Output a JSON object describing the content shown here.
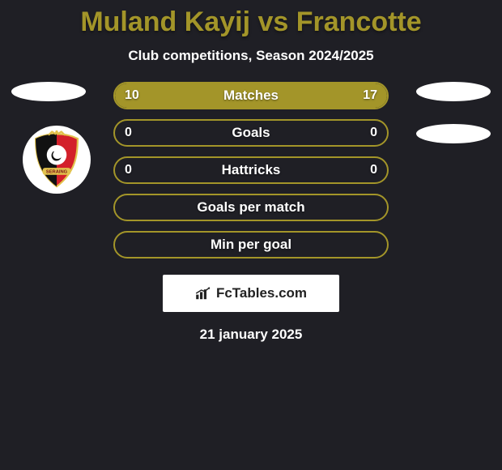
{
  "title": {
    "text": "Muland Kayij vs Francotte",
    "color": "#a39529",
    "fontsize": 34
  },
  "subtitle": {
    "text": "Club competitions, Season 2024/2025",
    "color": "#ffffff",
    "fontsize": 17
  },
  "colors": {
    "background": "#1f1f25",
    "bar_fill": "#a39529",
    "bar_border": "#a39529",
    "text": "#ffffff"
  },
  "bars": [
    {
      "label": "Matches",
      "left_value": "10",
      "right_value": "17",
      "left_fill_pct": 37,
      "right_fill_pct": 63,
      "show_values": true
    },
    {
      "label": "Goals",
      "left_value": "0",
      "right_value": "0",
      "left_fill_pct": 0,
      "right_fill_pct": 0,
      "show_values": true
    },
    {
      "label": "Hattricks",
      "left_value": "0",
      "right_value": "0",
      "left_fill_pct": 0,
      "right_fill_pct": 0,
      "show_values": true
    },
    {
      "label": "Goals per match",
      "left_value": "",
      "right_value": "",
      "left_fill_pct": 0,
      "right_fill_pct": 0,
      "show_values": false
    },
    {
      "label": "Min per goal",
      "left_value": "",
      "right_value": "",
      "left_fill_pct": 0,
      "right_fill_pct": 0,
      "show_values": false
    }
  ],
  "watermark": {
    "text": "FcTables.com"
  },
  "footer_date": "21 january 2025",
  "side_pills": {
    "color": "#ffffff"
  },
  "club_badge": {
    "name": "SERAING",
    "outer_ring": "#ffffff",
    "crest_colors": {
      "red": "#d3202a",
      "black": "#111111",
      "gold": "#e2c24c"
    }
  }
}
